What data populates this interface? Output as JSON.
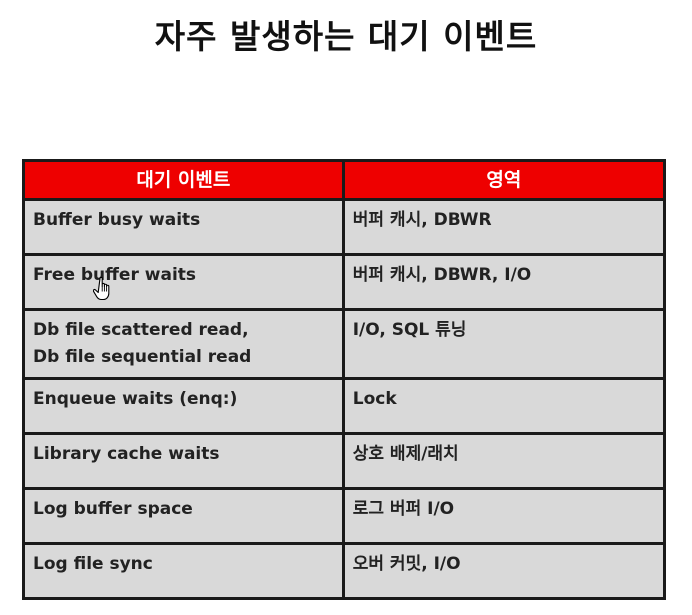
{
  "title": "자주 발생하는 대기 이벤트",
  "table": {
    "headers": [
      "대기 이벤트",
      "영역"
    ],
    "rows": [
      {
        "event_lines": [
          "Buffer busy waits"
        ],
        "area": "버퍼 캐시, DBWR"
      },
      {
        "event_lines": [
          "Free buffer waits"
        ],
        "area": "버퍼 캐시, DBWR, I/O"
      },
      {
        "event_lines": [
          "Db file scattered read,",
          "Db file sequential read"
        ],
        "area": "I/O, SQL 튜닝"
      },
      {
        "event_lines": [
          "Enqueue waits (enq:)"
        ],
        "area": "Lock"
      },
      {
        "event_lines": [
          "Library cache waits"
        ],
        "area": "상호 배제/래치"
      },
      {
        "event_lines": [
          "Log buffer space"
        ],
        "area": "로그 버퍼 I/O"
      },
      {
        "event_lines": [
          "Log file sync"
        ],
        "area": "오버 커밋, I/O"
      }
    ]
  },
  "cursor": {
    "icon": "hand-pointer-icon"
  },
  "colors": {
    "header_bg": "#ee0000",
    "cell_bg": "#d9d9d9",
    "border": "#1a1a1a"
  }
}
